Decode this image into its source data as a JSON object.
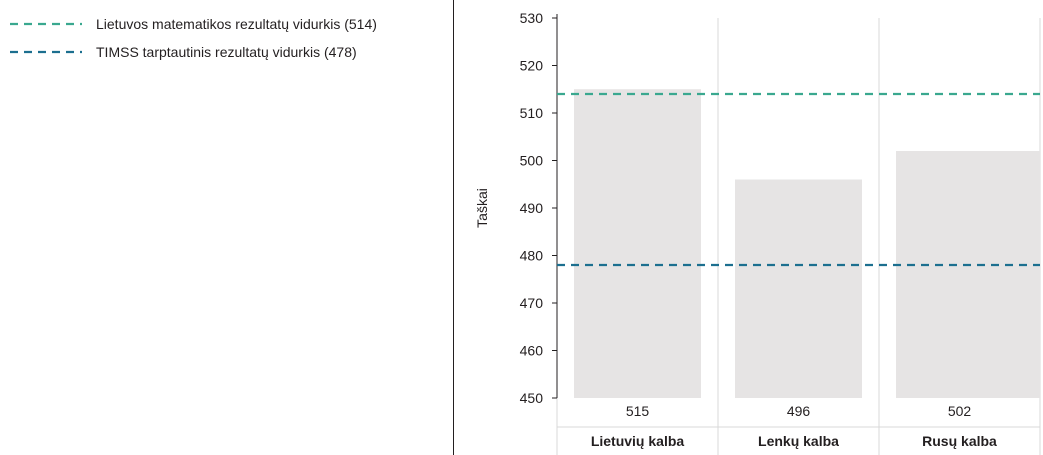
{
  "legend": [
    {
      "label": "Lietuvos matematikos rezultatų vidurkis (514)",
      "color": "#3aa88f"
    },
    {
      "label": "TIMSS tarptautinis rezultatų vidurkis (478)",
      "color": "#1c6f8f"
    }
  ],
  "chart_data": {
    "type": "bar",
    "categories": [
      "Lietuvių kalba",
      "Lenkų kalba",
      "Rusų kalba"
    ],
    "values": [
      515,
      496,
      502
    ],
    "value_labels": [
      "515",
      "496",
      "502"
    ],
    "ylabel": "Taškai",
    "ylim": [
      450,
      530
    ],
    "yticks": [
      450,
      460,
      470,
      480,
      490,
      500,
      510,
      520,
      530
    ],
    "reference_lines": [
      {
        "label": "Lietuvos matematikos rezultatų vidurkis (514)",
        "value": 514,
        "color": "#3aa88f"
      },
      {
        "label": "TIMSS tarptautinis rezultatų vidurkis (478)",
        "value": 478,
        "color": "#1c6f8f"
      }
    ],
    "bar_color": "#e6e4e4",
    "grid": true
  }
}
